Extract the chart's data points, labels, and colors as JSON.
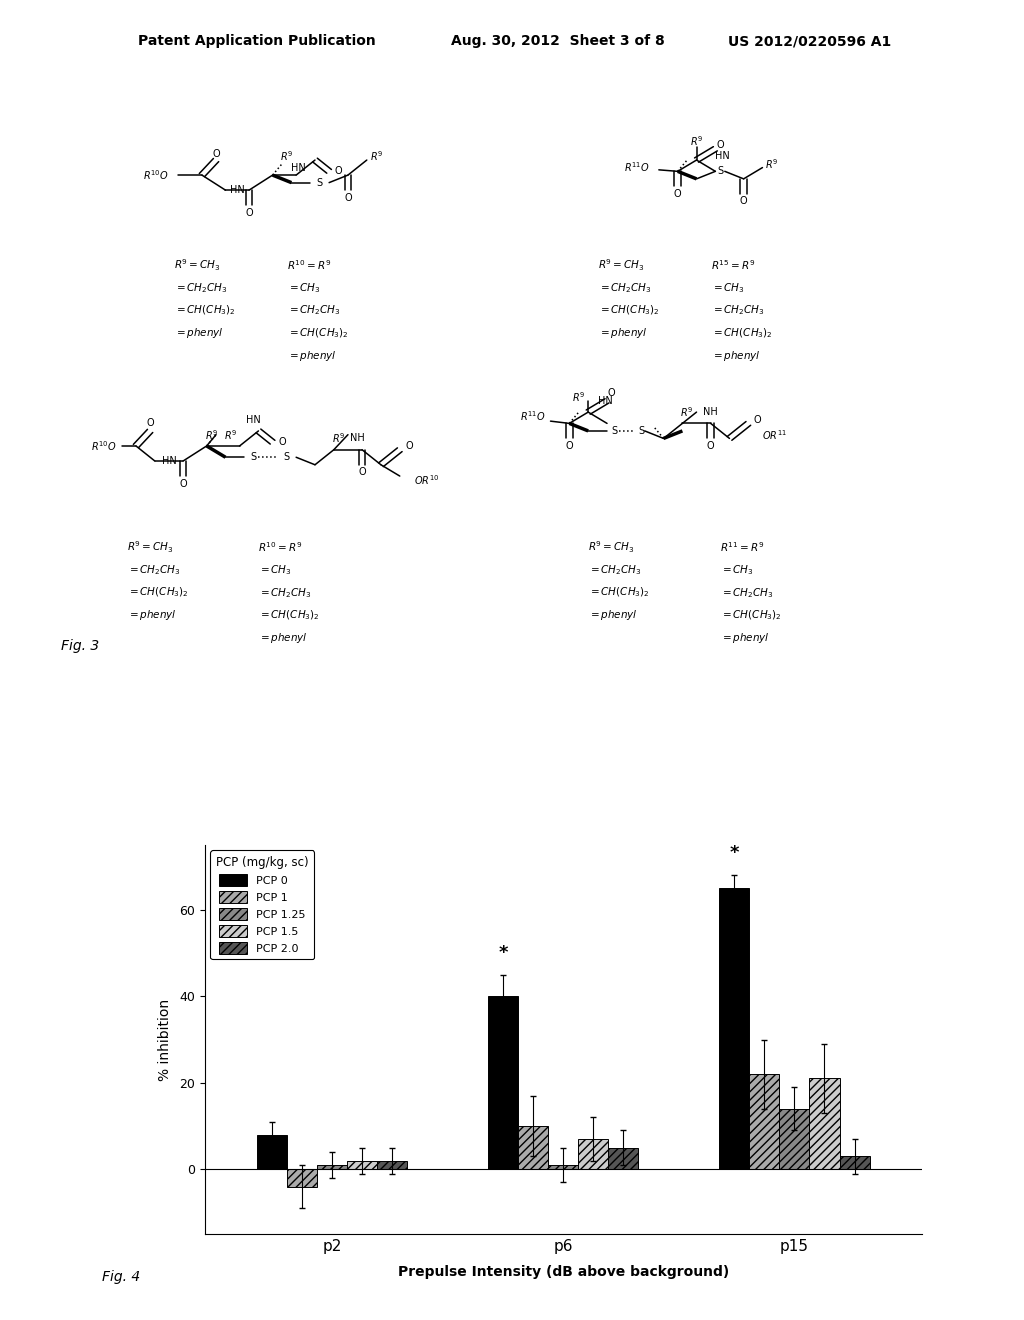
{
  "header_left": "Patent Application Publication",
  "header_mid": "Aug. 30, 2012  Sheet 3 of 8",
  "header_right": "US 2012/0220596 A1",
  "fig3_label": "Fig. 3",
  "fig4_label": "Fig. 4",
  "legend_title": "PCP (mg/kg, sc)",
  "legend_entries": [
    "PCP 0",
    "PCP 1",
    "PCP 1.25",
    "PCP 1.5",
    "PCP 2.0"
  ],
  "bar_colors": [
    "#000000",
    "#aaaaaa",
    "#888888",
    "#cccccc",
    "#555555"
  ],
  "bar_hatches": [
    "",
    "////",
    "////",
    "////",
    "////"
  ],
  "groups": [
    "p2",
    "p6",
    "p15"
  ],
  "values": [
    [
      8,
      -4,
      1,
      2,
      2
    ],
    [
      40,
      10,
      1,
      7,
      5
    ],
    [
      65,
      22,
      14,
      21,
      3
    ]
  ],
  "errors": [
    [
      3,
      5,
      3,
      3,
      3
    ],
    [
      5,
      7,
      4,
      5,
      4
    ],
    [
      3,
      8,
      5,
      8,
      4
    ]
  ],
  "ylabel": "% inhibition",
  "xlabel": "Prepulse Intensity (dB above background)",
  "ylim": [
    -15,
    75
  ],
  "yticks": [
    0,
    20,
    40,
    60
  ],
  "background_color": "#ffffff"
}
